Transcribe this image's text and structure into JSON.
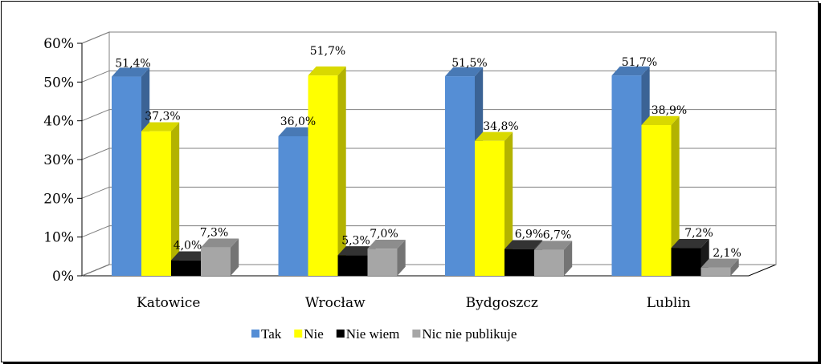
{
  "chart_data": {
    "type": "bar",
    "title": "",
    "xlabel": "",
    "ylabel": "",
    "ylim": [
      0,
      60
    ],
    "y_ticks": [
      "0%",
      "10%",
      "20%",
      "30%",
      "40%",
      "50%",
      "60%"
    ],
    "categories": [
      "Katowice",
      "Wrocław",
      "Bydgoszcz",
      "Lublin"
    ],
    "grid": true,
    "legend_position": "bottom",
    "series": [
      {
        "name": "Tak",
        "color": "#558ed5",
        "values": [
          51.4,
          36.0,
          51.5,
          51.7
        ],
        "labels": [
          "51,4%",
          "36,0%",
          "51,5%",
          "51,7%"
        ]
      },
      {
        "name": "Nie",
        "color": "#ffff00",
        "values": [
          37.3,
          51.7,
          34.8,
          38.9
        ],
        "labels": [
          "37,3%",
          "51,7%",
          "34,8%",
          "38,9%"
        ]
      },
      {
        "name": "Nie wiem",
        "color": "#000000",
        "values": [
          4.0,
          5.3,
          6.9,
          7.2
        ],
        "labels": [
          "4,0%",
          "5,3%",
          "6,9%",
          "7,2%"
        ]
      },
      {
        "name": "Nic nie publikuje",
        "color": "#a6a6a6",
        "values": [
          7.3,
          7.0,
          6.7,
          2.1
        ],
        "labels": [
          "7,3%",
          "7,0%",
          "6,7%",
          "2,1%"
        ]
      }
    ]
  }
}
